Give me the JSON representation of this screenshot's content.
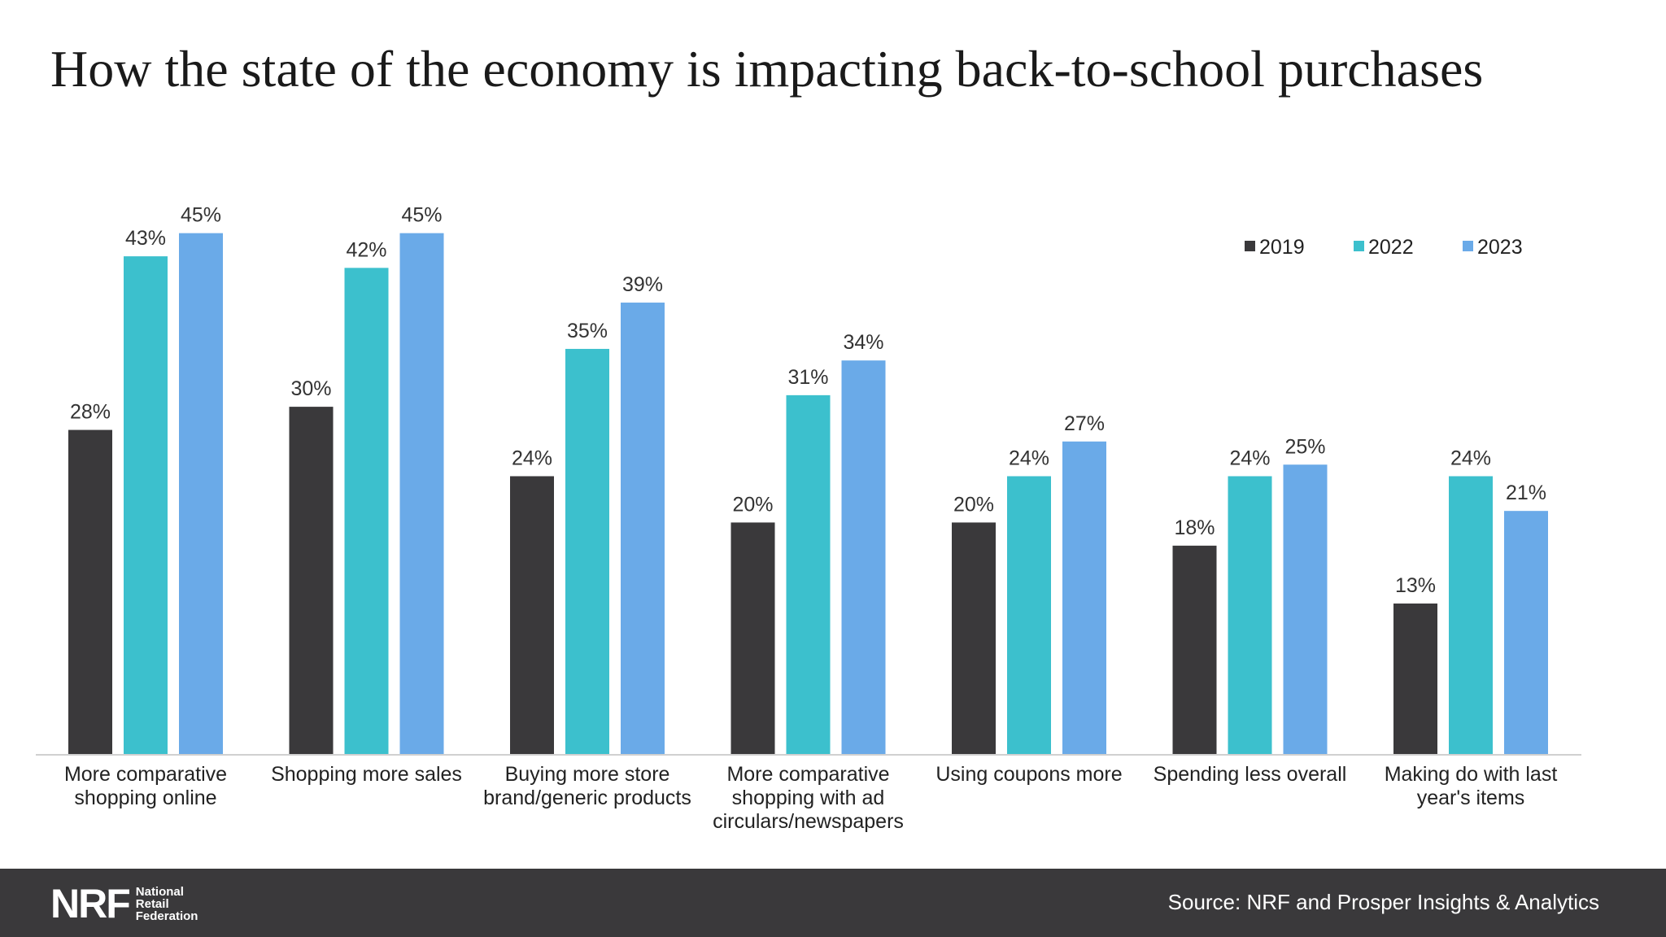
{
  "chart_data": {
    "type": "bar",
    "title": "How the state of the economy is impacting back-to-school purchases",
    "categories": [
      [
        "More comparative",
        "shopping online"
      ],
      [
        "Shopping more sales"
      ],
      [
        "Buying more store",
        "brand/generic products"
      ],
      [
        "More comparative",
        "shopping with ad",
        "circulars/newspapers"
      ],
      [
        "Using coupons more"
      ],
      [
        "Spending less overall"
      ],
      [
        "Making do with last",
        "year's items"
      ]
    ],
    "series": [
      {
        "name": "2019",
        "color": "#3a393b",
        "values": [
          28,
          30,
          24,
          20,
          20,
          18,
          13
        ]
      },
      {
        "name": "2022",
        "color": "#3cc0cd",
        "values": [
          43,
          42,
          35,
          31,
          24,
          24,
          24
        ]
      },
      {
        "name": "2023",
        "color": "#6aaae8",
        "values": [
          45,
          45,
          39,
          34,
          27,
          25,
          21
        ]
      }
    ],
    "value_suffix": "%",
    "ylim": [
      0,
      45
    ],
    "legend_position": "top-right",
    "grid": false
  },
  "footer": {
    "logo": {
      "mark": "NRF",
      "line1": "National",
      "line2": "Retail",
      "line3": "Federation"
    },
    "source": "Source: NRF and Prosper Insights & Analytics"
  }
}
